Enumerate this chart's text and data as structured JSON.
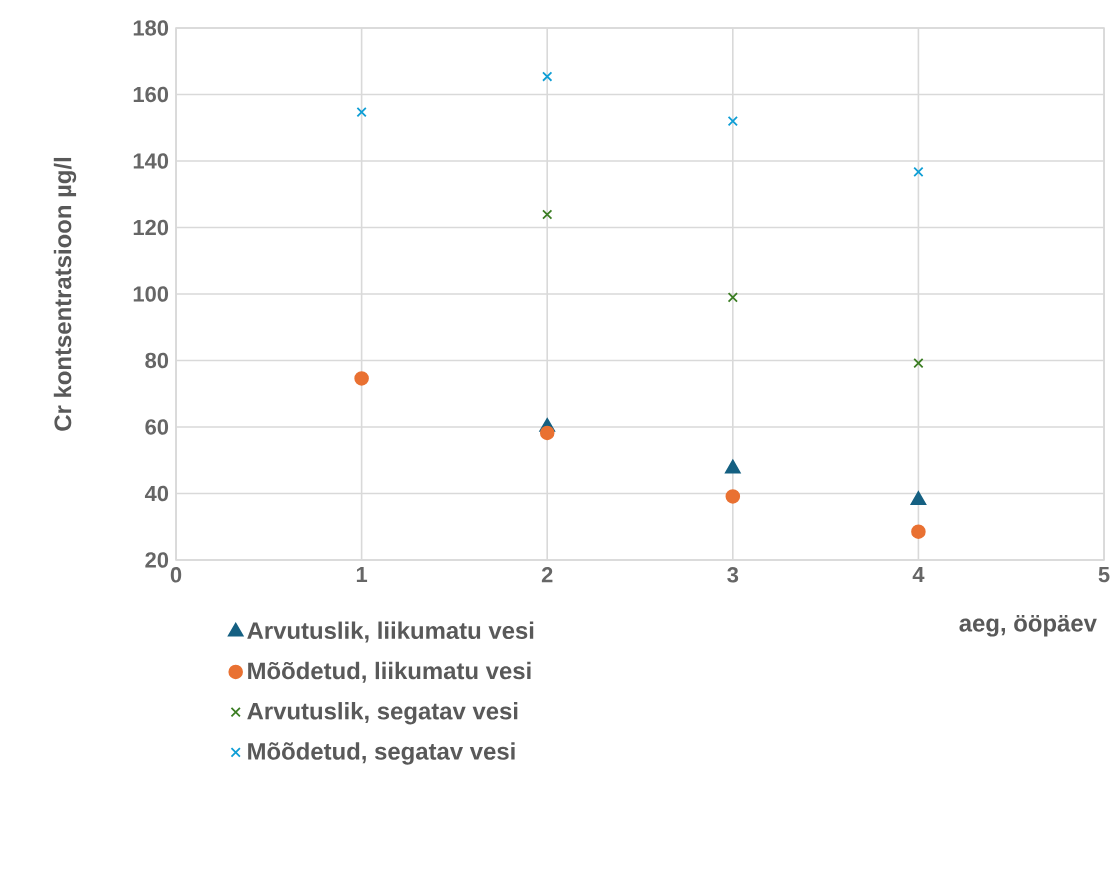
{
  "chart_data": {
    "type": "scatter",
    "xlabel": "aeg, ööpäev",
    "ylabel": "Cr kontsentratsioon µg/l",
    "xlim": [
      0,
      5
    ],
    "xticks": [
      0,
      1,
      2,
      3,
      4,
      5
    ],
    "ylim": [
      20,
      180
    ],
    "yticks": [
      20,
      40,
      60,
      80,
      100,
      120,
      140,
      160,
      180
    ],
    "grid": true,
    "legend": "bottom",
    "series": [
      {
        "name": "Arvutuslik, liikumatu vesi",
        "color": "#156082",
        "marker": "triangle",
        "x": [
          2,
          3,
          4
        ],
        "values": [
          60,
          47.5,
          38
        ]
      },
      {
        "name": "Mõõdetud, liikumatu vesi",
        "color": "#e97132",
        "marker": "circle",
        "x": [
          1,
          2,
          3,
          4
        ],
        "values": [
          74.6,
          58.2,
          39.1,
          28.5
        ]
      },
      {
        "name": "Arvutuslik, segatav vesi",
        "color": "#3b7d23",
        "marker": "cross",
        "x": [
          2,
          3,
          4
        ],
        "values": [
          123.9,
          99,
          79.2
        ]
      },
      {
        "name": "Mõõdetud, segatav vesi",
        "color": "#0f9ed5",
        "marker": "cross",
        "x": [
          1,
          2,
          3,
          4
        ],
        "values": [
          154.7,
          165.4,
          152,
          136.7
        ]
      }
    ]
  }
}
